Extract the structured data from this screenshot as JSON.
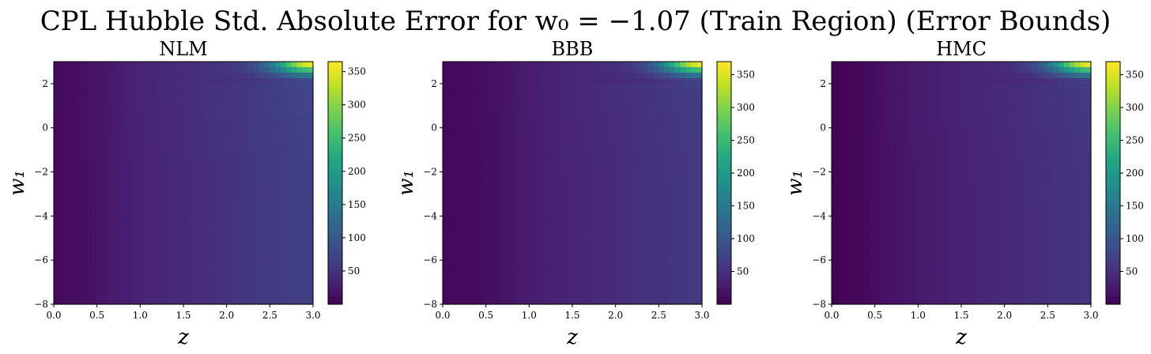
{
  "title": "CPL Hubble Std. Absolute Error for w₀ = −1.07 (Train Region) (Error Bounds)",
  "chart_data": [
    {
      "type": "heatmap",
      "title": "NLM",
      "xlabel": "z",
      "ylabel": "w₁",
      "xlim": [
        0.0,
        3.0
      ],
      "ylim": [
        -8,
        3
      ],
      "xticks": [
        "0.0",
        "0.5",
        "1.0",
        "1.5",
        "2.0",
        "2.5",
        "3.0"
      ],
      "yticks": [
        "−8",
        "−6",
        "−4",
        "−2",
        "0",
        "2"
      ],
      "colorbar": {
        "min": 0,
        "max": 365,
        "ticks": [
          "50",
          "100",
          "150",
          "200",
          "250",
          "300",
          "350"
        ],
        "colormap": "viridis"
      },
      "grid": false,
      "field": {
        "base_low": 12,
        "base_high": 70,
        "valley_z": 0.3,
        "hot_corner": 365
      }
    },
    {
      "type": "heatmap",
      "title": "BBB",
      "xlabel": "z",
      "ylabel": "w₁",
      "xlim": [
        0.0,
        3.0
      ],
      "ylim": [
        -8,
        3
      ],
      "xticks": [
        "0.0",
        "0.5",
        "1.0",
        "1.5",
        "2.0",
        "2.5",
        "3.0"
      ],
      "yticks": [
        "−8",
        "−6",
        "−4",
        "−2",
        "0",
        "2"
      ],
      "colorbar": {
        "min": 0,
        "max": 370,
        "ticks": [
          "50",
          "100",
          "150",
          "200",
          "250",
          "300",
          "350"
        ],
        "colormap": "viridis"
      },
      "grid": false,
      "field": {
        "base_low": 8,
        "base_high": 62,
        "valley_z": 0.5,
        "hot_corner": 370
      }
    },
    {
      "type": "heatmap",
      "title": "HMC",
      "xlabel": "z",
      "ylabel": "w₁",
      "xlim": [
        0.0,
        3.0
      ],
      "ylim": [
        -8,
        3
      ],
      "xticks": [
        "0.0",
        "0.5",
        "1.0",
        "1.5",
        "2.0",
        "2.5",
        "3.0"
      ],
      "yticks": [
        "−8",
        "−6",
        "−4",
        "−2",
        "0",
        "2"
      ],
      "colorbar": {
        "min": 0,
        "max": 370,
        "ticks": [
          "50",
          "100",
          "150",
          "200",
          "250",
          "300",
          "350"
        ],
        "colormap": "viridis"
      },
      "grid": false,
      "field": {
        "base_low": 6,
        "base_high": 58,
        "valley_z": 0.3,
        "hot_corner": 370
      }
    }
  ]
}
